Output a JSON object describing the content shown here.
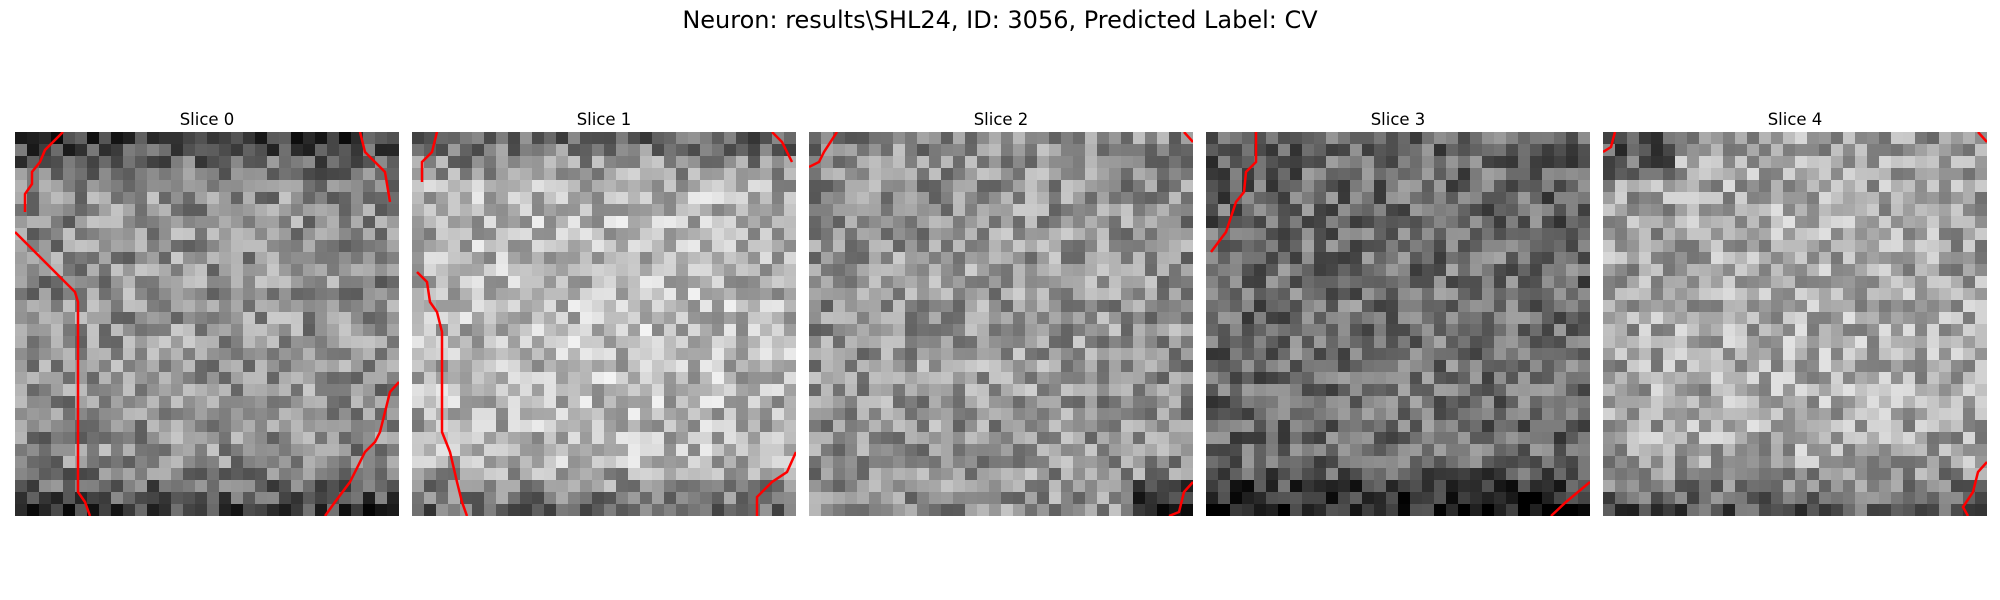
{
  "figure": {
    "title": "Neuron: results\\SHL24, ID: 3056, Predicted Label: CV"
  },
  "panels": [
    {
      "title": "Slice 0",
      "base": 150,
      "seed": 11,
      "dark_corners": [
        "top",
        "bottom"
      ]
    },
    {
      "title": "Slice 1",
      "base": 190,
      "seed": 23,
      "dark_corners": [
        "top",
        "bottom"
      ]
    },
    {
      "title": "Slice 2",
      "base": 155,
      "seed": 37,
      "dark_corners": [
        "bottom-right"
      ]
    },
    {
      "title": "Slice 3",
      "base": 115,
      "seed": 51,
      "dark_corners": [
        "bottom"
      ]
    },
    {
      "title": "Slice 4",
      "base": 175,
      "seed": 67,
      "dark_corners": [
        "top-left",
        "bottom"
      ]
    }
  ],
  "colors": {
    "contour": "#ff0000",
    "colormap": "gray"
  }
}
